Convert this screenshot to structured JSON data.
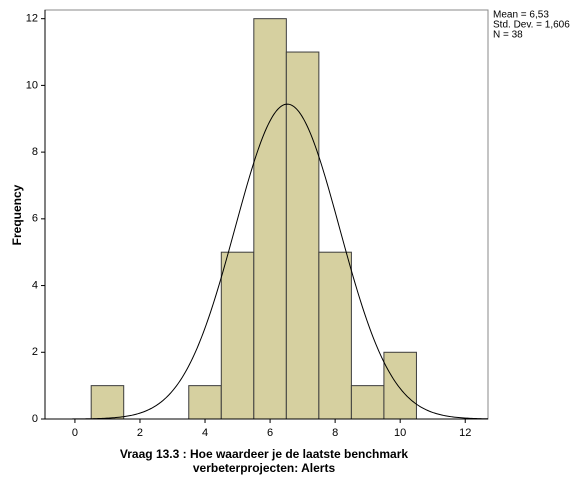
{
  "chart_data": {
    "type": "histogram",
    "bins": [
      0.5,
      1.5,
      2.5,
      3.5,
      4.5,
      5.5,
      6.5,
      7.5,
      8.5,
      9.5,
      10.5
    ],
    "values": [
      1,
      0,
      0,
      1,
      5,
      12,
      11,
      5,
      1,
      2
    ],
    "color": "#d6d0a0",
    "edge_color": "#3c3c3c",
    "xlim": [
      -0.92,
      12.7
    ],
    "xticks": [
      0,
      2,
      4,
      6,
      8,
      10,
      12
    ],
    "ylim": [
      0,
      12.26
    ],
    "yticks": [
      0,
      2,
      4,
      6,
      8,
      10,
      12
    ],
    "ylabel": "Frequency",
    "xlabel": [
      "Vraag 13.3 : Hoe waardeer je de laatste benchmark",
      "verbeterprojecten: Alerts"
    ],
    "normal_curve": {
      "mean": 6.53,
      "sd": 1.606,
      "n": 38,
      "color": "#000000",
      "labels": [
        "Mean = 6,53",
        "Std. Dev. = 1,606",
        "N = 38"
      ]
    }
  }
}
